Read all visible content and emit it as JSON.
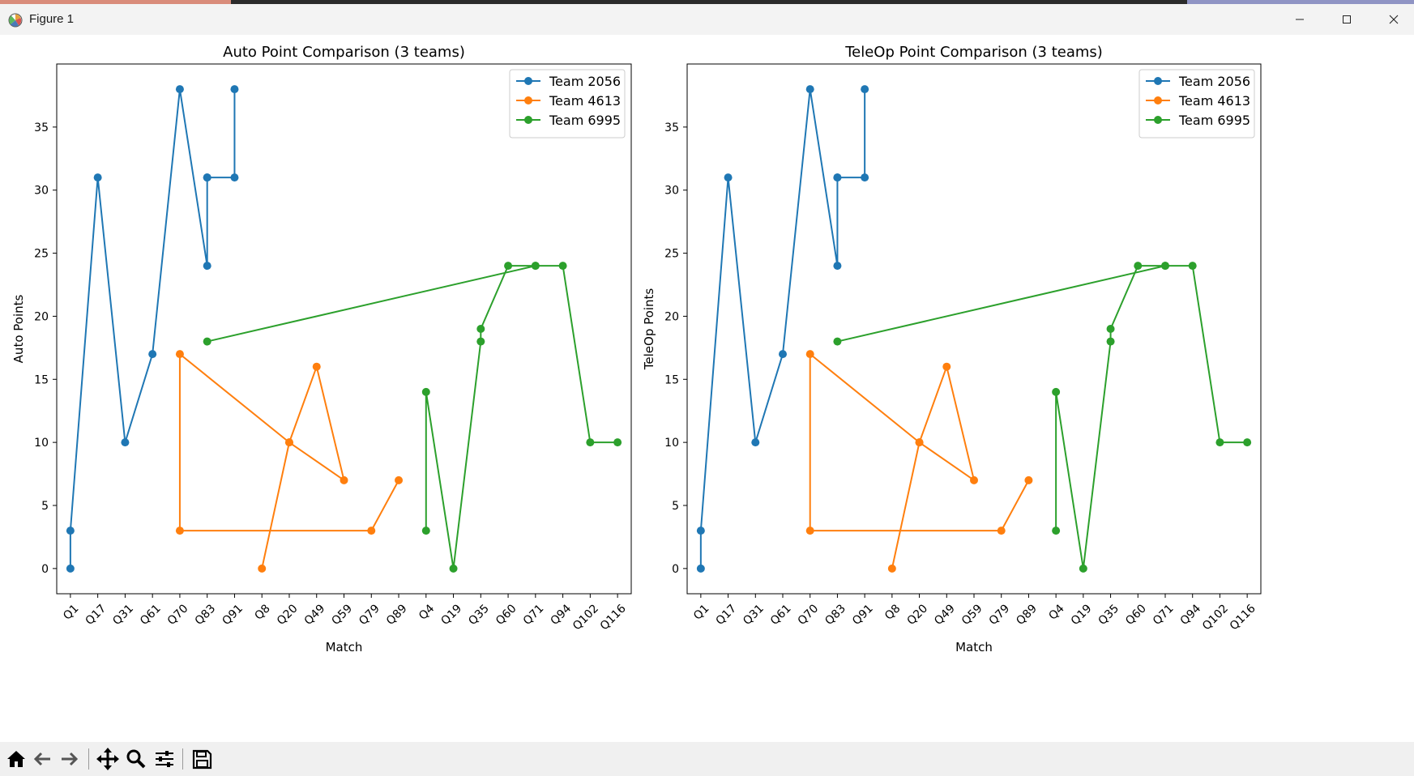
{
  "window": {
    "title": "Figure 1",
    "icons": [
      "matplotlib-app-icon",
      "minimize-icon",
      "maximize-icon",
      "close-icon"
    ]
  },
  "toolbar": {
    "buttons": [
      {
        "name": "home-icon"
      },
      {
        "name": "back-arrow-icon"
      },
      {
        "name": "forward-arrow-icon"
      },
      {
        "name": "pan-icon"
      },
      {
        "name": "zoom-icon"
      },
      {
        "name": "configure-subplots-icon"
      },
      {
        "name": "save-icon"
      }
    ]
  },
  "colors": {
    "team_2056": "#1f77b4",
    "team_4613": "#ff7f0e",
    "team_6995": "#2ca02c"
  },
  "chart_data": [
    {
      "type": "line",
      "title": "Auto Point Comparison (3 teams)",
      "xlabel": "Match",
      "ylabel": "Auto Points",
      "categories": [
        "Q1",
        "Q17",
        "Q31",
        "Q61",
        "Q70",
        "Q83",
        "Q91",
        "Q8",
        "Q20",
        "Q49",
        "Q59",
        "Q79",
        "Q89",
        "Q4",
        "Q19",
        "Q35",
        "Q60",
        "Q71",
        "Q94",
        "Q102",
        "Q116"
      ],
      "yticks": [
        0,
        5,
        10,
        15,
        20,
        25,
        30,
        35
      ],
      "ylim": [
        -2,
        40
      ],
      "grid": false,
      "legend": "top-right",
      "series": [
        {
          "name": "Team 2056",
          "color": "#1f77b4",
          "x": [
            "Q1",
            "Q1",
            "Q17",
            "Q31",
            "Q61",
            "Q70",
            "Q83",
            "Q83",
            "Q83",
            "Q91",
            "Q91"
          ],
          "y": [
            0,
            3,
            31,
            10,
            17,
            38,
            24,
            31,
            31,
            31,
            38
          ]
        },
        {
          "name": "Team 4613",
          "color": "#ff7f0e",
          "x": [
            "Q8",
            "Q20",
            "Q49",
            "Q59",
            "Q20",
            "Q70",
            "Q70",
            "Q79",
            "Q89"
          ],
          "y": [
            0,
            10,
            16,
            7,
            10,
            17,
            3,
            3,
            7
          ]
        },
        {
          "name": "Team 6995",
          "color": "#2ca02c",
          "x": [
            "Q4",
            "Q4",
            "Q19",
            "Q35",
            "Q35",
            "Q60",
            "Q71",
            "Q83",
            "Q71",
            "Q94",
            "Q102",
            "Q116"
          ],
          "y": [
            3,
            14,
            0,
            18,
            19,
            24,
            24,
            18,
            24,
            24,
            10,
            10
          ]
        }
      ]
    },
    {
      "type": "line",
      "title": "TeleOp Point Comparison (3 teams)",
      "xlabel": "Match",
      "ylabel": "TeleOp Points",
      "categories": [
        "Q1",
        "Q17",
        "Q31",
        "Q61",
        "Q70",
        "Q83",
        "Q91",
        "Q8",
        "Q20",
        "Q49",
        "Q59",
        "Q79",
        "Q89",
        "Q4",
        "Q19",
        "Q35",
        "Q60",
        "Q71",
        "Q94",
        "Q102",
        "Q116"
      ],
      "yticks": [
        0,
        5,
        10,
        15,
        20,
        25,
        30,
        35
      ],
      "ylim": [
        -2,
        40
      ],
      "grid": false,
      "legend": "top-right",
      "series": [
        {
          "name": "Team 2056",
          "color": "#1f77b4",
          "x": [
            "Q1",
            "Q1",
            "Q17",
            "Q31",
            "Q61",
            "Q70",
            "Q83",
            "Q83",
            "Q83",
            "Q91",
            "Q91"
          ],
          "y": [
            0,
            3,
            31,
            10,
            17,
            38,
            24,
            31,
            31,
            31,
            38
          ]
        },
        {
          "name": "Team 4613",
          "color": "#ff7f0e",
          "x": [
            "Q8",
            "Q20",
            "Q49",
            "Q59",
            "Q20",
            "Q70",
            "Q70",
            "Q79",
            "Q89"
          ],
          "y": [
            0,
            10,
            16,
            7,
            10,
            17,
            3,
            3,
            7
          ]
        },
        {
          "name": "Team 6995",
          "color": "#2ca02c",
          "x": [
            "Q4",
            "Q4",
            "Q19",
            "Q35",
            "Q35",
            "Q60",
            "Q71",
            "Q83",
            "Q71",
            "Q94",
            "Q102",
            "Q116"
          ],
          "y": [
            3,
            14,
            0,
            18,
            19,
            24,
            24,
            18,
            24,
            24,
            10,
            10
          ]
        }
      ]
    }
  ]
}
